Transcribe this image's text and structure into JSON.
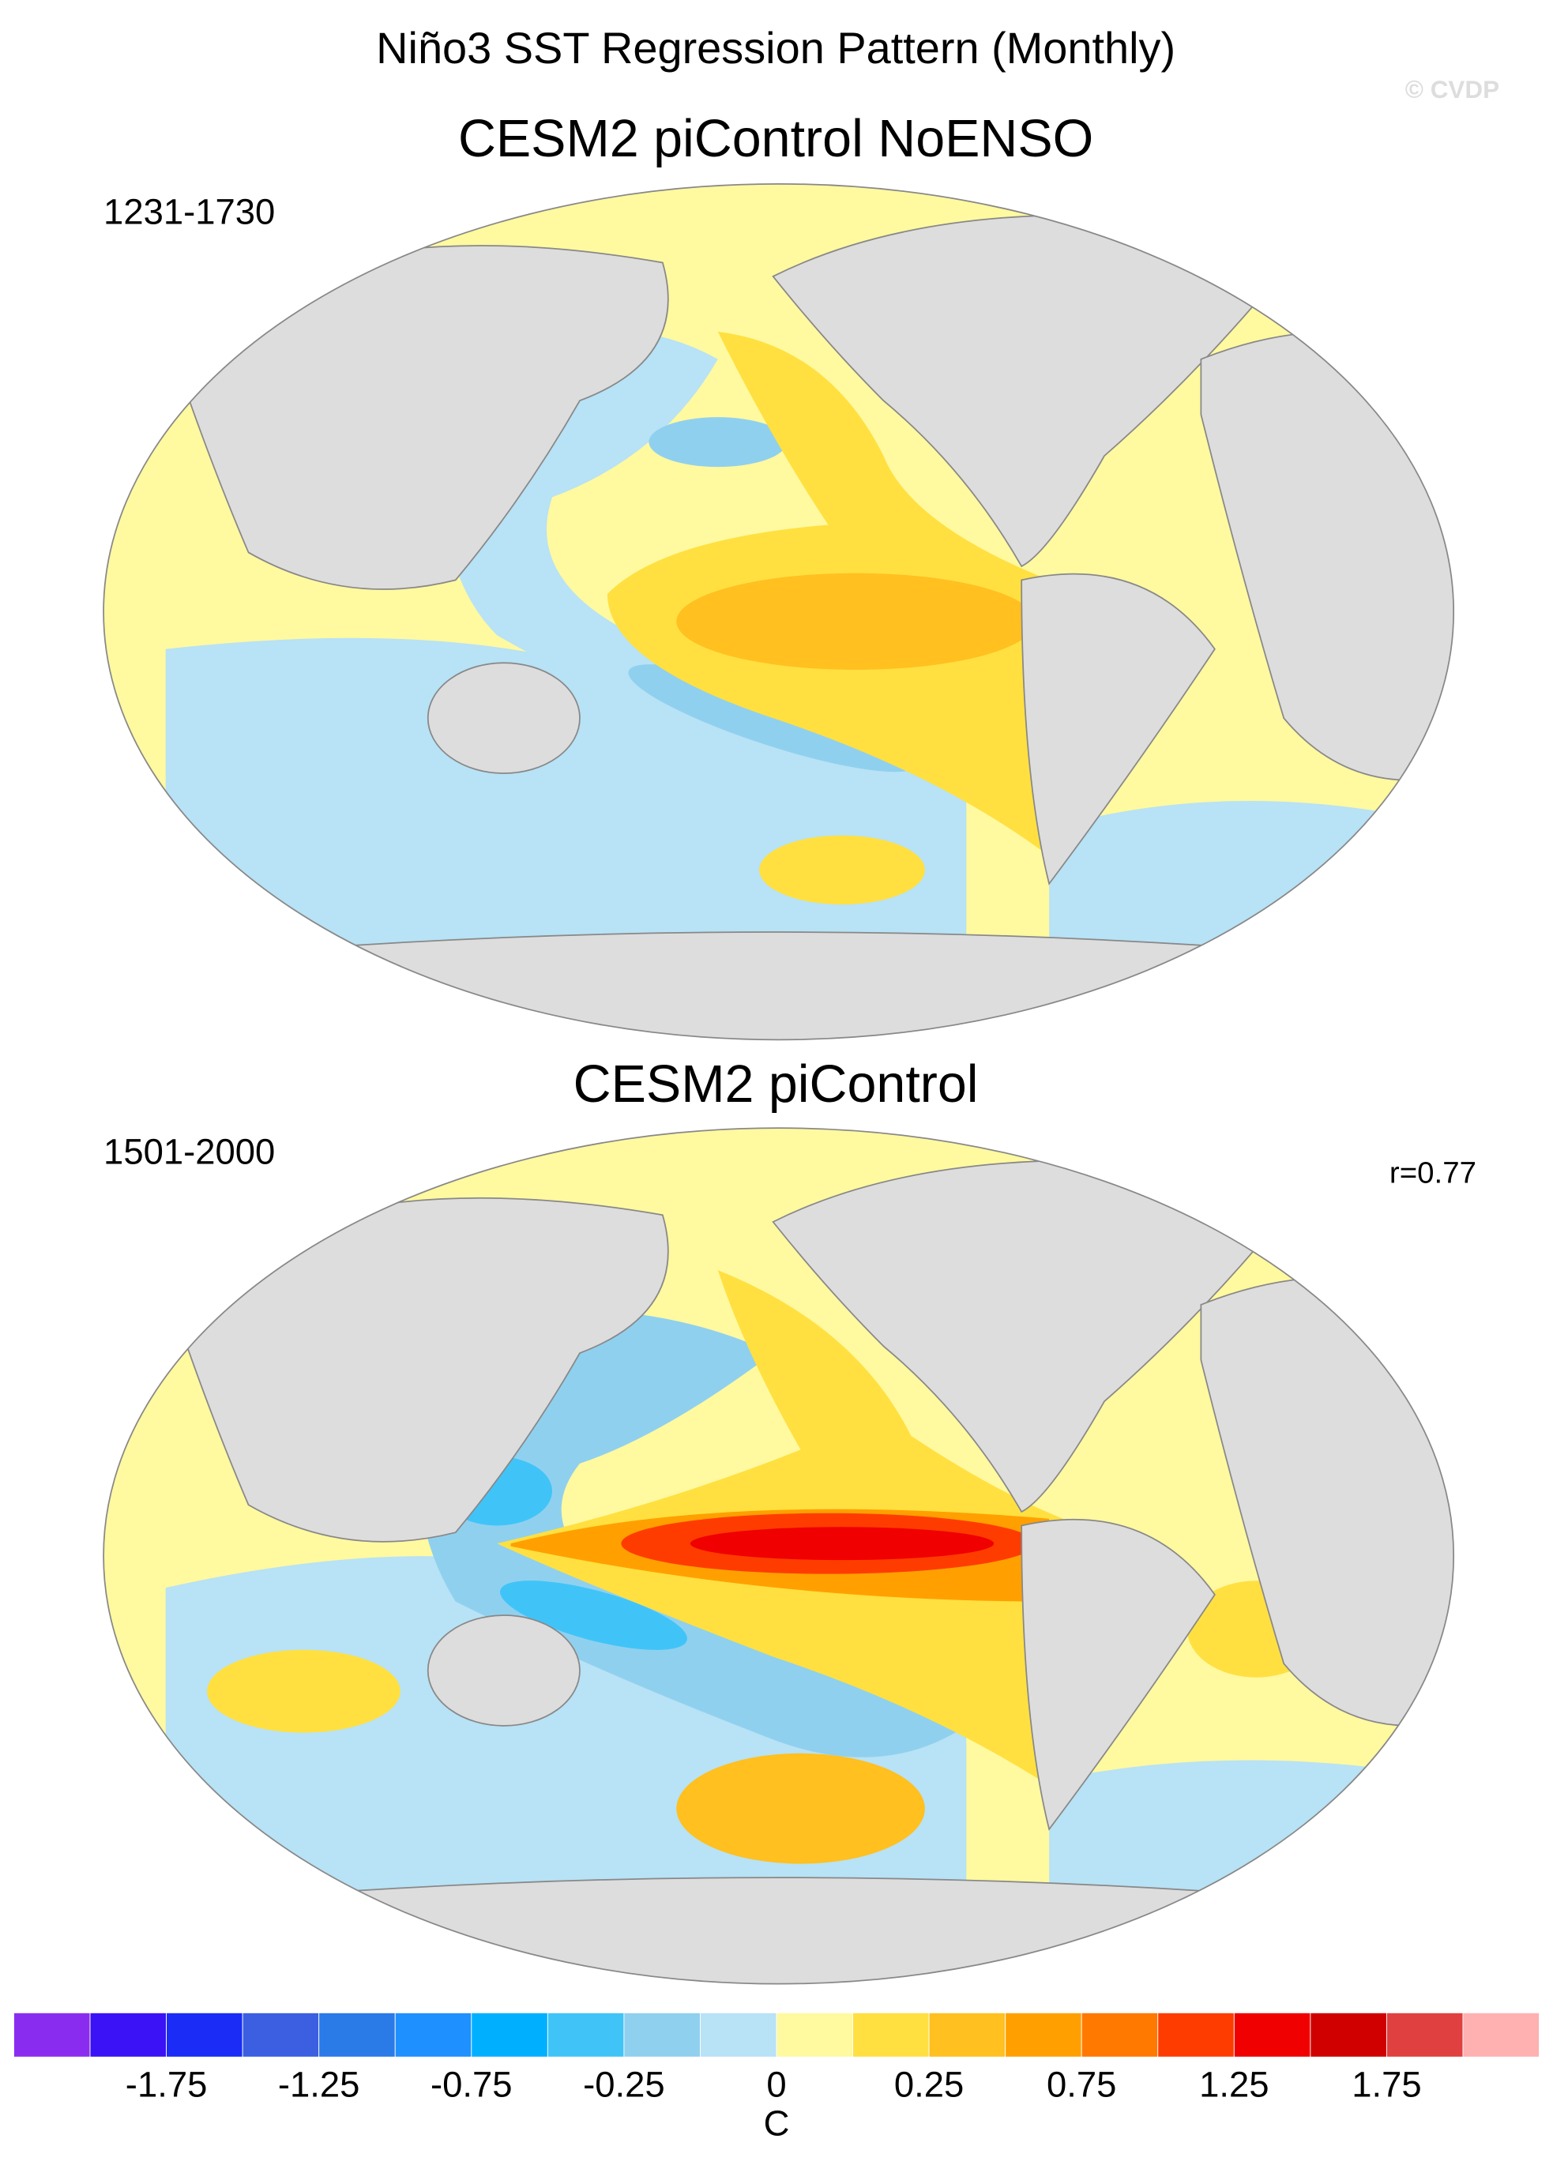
{
  "title": "Niño3 SST Regression Pattern (Monthly)",
  "watermark": "© CVDP",
  "panels": [
    {
      "title": "CESM2 piControl NoENSO",
      "period": "1231-1730"
    },
    {
      "title": "CESM2 piControl",
      "period": "1501-2000",
      "correlation": "r=0.77"
    }
  ],
  "colorbar": {
    "colors": [
      "#8a2cf0",
      "#3a12f5",
      "#1a2cf5",
      "#3b5fe0",
      "#2a7ae8",
      "#1e90ff",
      "#00b0ff",
      "#40c4f8",
      "#90d0ef",
      "#b8e2f5",
      "#fff9a0",
      "#ffe040",
      "#ffc020",
      "#ffa000",
      "#ff7800",
      "#ff3c00",
      "#f00000",
      "#d00000",
      "#e04040",
      "#ffb0b0"
    ],
    "levels": [
      -2,
      -1.75,
      -1.5,
      -1.25,
      -1,
      -0.75,
      -0.5,
      -0.25,
      -0.1,
      0,
      0.1,
      0.25,
      0.5,
      0.75,
      1,
      1.25,
      1.5,
      1.75,
      2
    ],
    "ticks": [
      -1.75,
      -1.25,
      -0.75,
      -0.25,
      0,
      0.25,
      0.75,
      1.25,
      1.75
    ],
    "unit": "C"
  }
}
